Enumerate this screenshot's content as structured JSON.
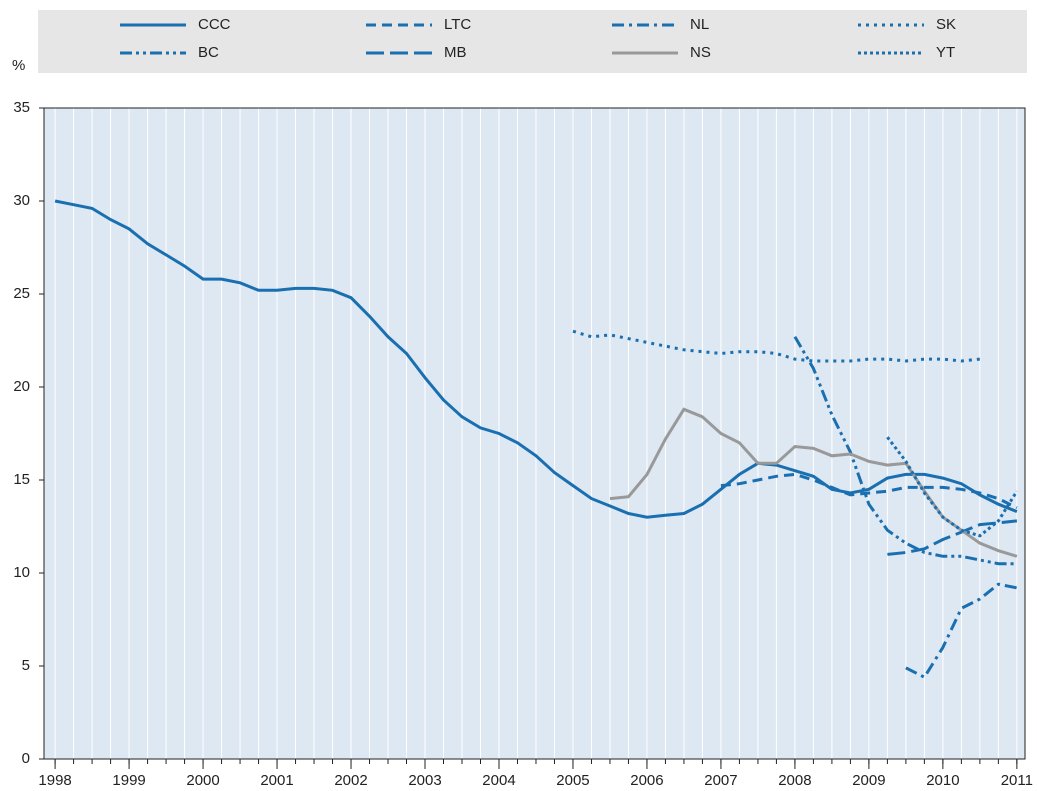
{
  "chart_data": {
    "type": "line",
    "y_unit": "%",
    "x": [
      1998,
      1998.25,
      1998.5,
      1998.75,
      1999,
      1999.25,
      1999.5,
      1999.75,
      2000,
      2000.25,
      2000.5,
      2000.75,
      2001,
      2001.25,
      2001.5,
      2001.75,
      2002,
      2002.25,
      2002.5,
      2002.75,
      2003,
      2003.25,
      2003.5,
      2003.75,
      2004,
      2004.25,
      2004.5,
      2004.75,
      2005,
      2005.25,
      2005.5,
      2005.75,
      2006,
      2006.25,
      2006.5,
      2006.75,
      2007,
      2007.25,
      2007.5,
      2007.75,
      2008,
      2008.25,
      2008.5,
      2008.75,
      2009,
      2009.25,
      2009.5,
      2009.75,
      2010,
      2010.25,
      2010.5,
      2010.75,
      2011
    ],
    "series": [
      {
        "name": "CCC",
        "color": "#1a6fb0",
        "dash": "",
        "values": [
          30.0,
          29.8,
          29.6,
          29.0,
          28.5,
          27.7,
          27.1,
          26.5,
          25.8,
          25.8,
          25.6,
          25.2,
          25.2,
          25.3,
          25.3,
          25.2,
          24.8,
          23.8,
          22.7,
          21.8,
          20.5,
          19.3,
          18.4,
          17.8,
          17.5,
          17.0,
          16.3,
          15.4,
          14.7,
          14.0,
          13.6,
          13.2,
          13.0,
          13.1,
          13.2,
          13.7,
          14.5,
          15.3,
          15.9,
          15.8,
          15.5,
          15.2,
          14.5,
          14.3,
          14.5,
          15.1,
          15.3,
          15.3,
          15.1,
          14.8,
          14.2,
          13.7,
          13.3
        ]
      },
      {
        "name": "LTC",
        "color": "#1a6fb0",
        "dash": "10,6",
        "values": [
          null,
          null,
          null,
          null,
          null,
          null,
          null,
          null,
          null,
          null,
          null,
          null,
          null,
          null,
          null,
          null,
          null,
          null,
          null,
          null,
          null,
          null,
          null,
          null,
          null,
          null,
          null,
          null,
          null,
          null,
          null,
          null,
          null,
          null,
          null,
          null,
          14.7,
          14.8,
          15.0,
          15.2,
          15.3,
          15.0,
          14.6,
          14.2,
          14.3,
          14.4,
          14.6,
          14.6,
          14.6,
          14.5,
          14.3,
          14.0,
          13.5
        ]
      },
      {
        "name": "NL",
        "color": "#1a6fb0",
        "dash": "12,5,3,5",
        "values": [
          null,
          null,
          null,
          null,
          null,
          null,
          null,
          null,
          null,
          null,
          null,
          null,
          null,
          null,
          null,
          null,
          null,
          null,
          null,
          null,
          null,
          null,
          null,
          null,
          null,
          null,
          null,
          null,
          null,
          null,
          null,
          null,
          null,
          null,
          null,
          null,
          null,
          null,
          null,
          null,
          null,
          null,
          null,
          null,
          null,
          null,
          4.9,
          4.4,
          6.0,
          8.1,
          8.6,
          9.4,
          9.2
        ]
      },
      {
        "name": "SK",
        "color": "#1a6fb0",
        "dash": "3,5",
        "values": [
          null,
          null,
          null,
          null,
          null,
          null,
          null,
          null,
          null,
          null,
          null,
          null,
          null,
          null,
          null,
          null,
          null,
          null,
          null,
          null,
          null,
          null,
          null,
          null,
          null,
          null,
          null,
          null,
          23.0,
          22.7,
          22.8,
          22.6,
          22.4,
          22.2,
          22.0,
          21.9,
          21.8,
          21.9,
          21.9,
          21.8,
          21.5,
          21.4,
          21.4,
          21.4,
          21.5,
          21.5,
          21.4,
          21.5,
          21.5,
          21.4,
          21.5,
          null,
          null
        ]
      },
      {
        "name": "BC",
        "color": "#1a6fb0",
        "dash": "12,4,3,4,3,4",
        "values": [
          null,
          null,
          null,
          null,
          null,
          null,
          null,
          null,
          null,
          null,
          null,
          null,
          null,
          null,
          null,
          null,
          null,
          null,
          null,
          null,
          null,
          null,
          null,
          null,
          null,
          null,
          null,
          null,
          null,
          null,
          null,
          null,
          null,
          null,
          null,
          null,
          null,
          null,
          null,
          null,
          22.7,
          21.0,
          18.5,
          16.5,
          13.7,
          12.3,
          11.6,
          11.1,
          10.9,
          10.9,
          10.7,
          10.5,
          10.5
        ]
      },
      {
        "name": "MB",
        "color": "#1a6fb0",
        "dash": "18,6",
        "values": [
          null,
          null,
          null,
          null,
          null,
          null,
          null,
          null,
          null,
          null,
          null,
          null,
          null,
          null,
          null,
          null,
          null,
          null,
          null,
          null,
          null,
          null,
          null,
          null,
          null,
          null,
          null,
          null,
          null,
          null,
          null,
          null,
          null,
          null,
          null,
          null,
          null,
          null,
          null,
          null,
          null,
          null,
          null,
          null,
          null,
          11.0,
          11.1,
          11.3,
          11.8,
          12.2,
          12.6,
          12.7,
          12.8
        ]
      },
      {
        "name": "NS",
        "color": "#999999",
        "dash": "",
        "values": [
          null,
          null,
          null,
          null,
          null,
          null,
          null,
          null,
          null,
          null,
          null,
          null,
          null,
          null,
          null,
          null,
          null,
          null,
          null,
          null,
          null,
          null,
          null,
          null,
          null,
          null,
          null,
          null,
          null,
          null,
          14.0,
          14.1,
          15.3,
          17.2,
          18.8,
          18.4,
          17.5,
          17.0,
          15.9,
          15.9,
          16.8,
          16.7,
          16.3,
          16.4,
          16.0,
          15.8,
          15.9,
          14.4,
          13.0,
          12.3,
          11.6,
          11.2,
          10.9
        ]
      },
      {
        "name": "YT",
        "color": "#1a6fb0",
        "dash": "3,3",
        "values": [
          null,
          null,
          null,
          null,
          null,
          null,
          null,
          null,
          null,
          null,
          null,
          null,
          null,
          null,
          null,
          null,
          null,
          null,
          null,
          null,
          null,
          null,
          null,
          null,
          null,
          null,
          null,
          null,
          null,
          null,
          null,
          null,
          null,
          null,
          null,
          null,
          null,
          null,
          null,
          null,
          null,
          null,
          null,
          null,
          null,
          17.3,
          16.0,
          14.3,
          13.0,
          12.3,
          12.0,
          12.8,
          14.4
        ]
      }
    ],
    "xlim": [
      1997.85,
      2011.11
    ],
    "xticks": [
      1998,
      1999,
      2000,
      2001,
      2002,
      2003,
      2004,
      2005,
      2006,
      2007,
      2008,
      2009,
      2010,
      2011
    ],
    "ylim": [
      0,
      35
    ],
    "yticks": [
      0,
      5,
      10,
      15,
      20,
      25,
      30,
      35
    ],
    "grid": true
  }
}
